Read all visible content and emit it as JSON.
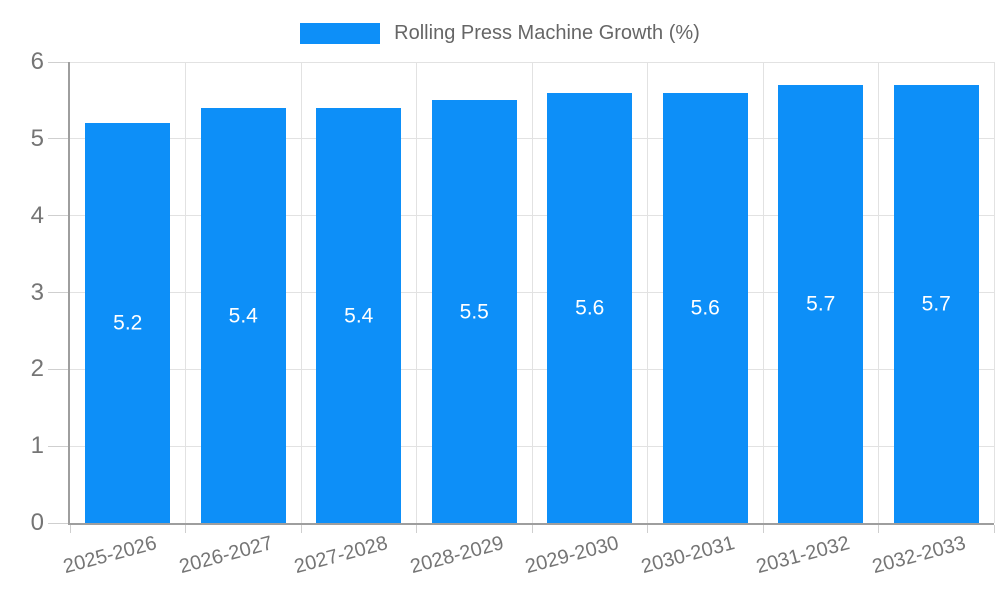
{
  "legend": {
    "label": "Rolling Press Machine Growth (%)"
  },
  "colors": {
    "bar": "#0d8ff8",
    "axis_line": "#9e9e9e",
    "gridline": "#e2e2e2",
    "tick_label": "#757575",
    "legend_text": "#666666",
    "bar_value_text": "#ffffff"
  },
  "chart_data": {
    "type": "bar",
    "title": "Rolling Press Machine Growth (%)",
    "categories": [
      "2025-2026",
      "2026-2027",
      "2027-2028",
      "2028-2029",
      "2029-2030",
      "2030-2031",
      "2031-2032",
      "2032-2033"
    ],
    "values": [
      5.2,
      5.4,
      5.4,
      5.5,
      5.6,
      5.6,
      5.7,
      5.7
    ],
    "xlabel": "",
    "ylabel": "",
    "ylim": [
      0,
      6
    ],
    "yticks": [
      0,
      1,
      2,
      3,
      4,
      5,
      6
    ],
    "grid": true,
    "legend_position": "top",
    "value_labels": "inside-center",
    "x_tick_label_rotation_deg": -15
  }
}
